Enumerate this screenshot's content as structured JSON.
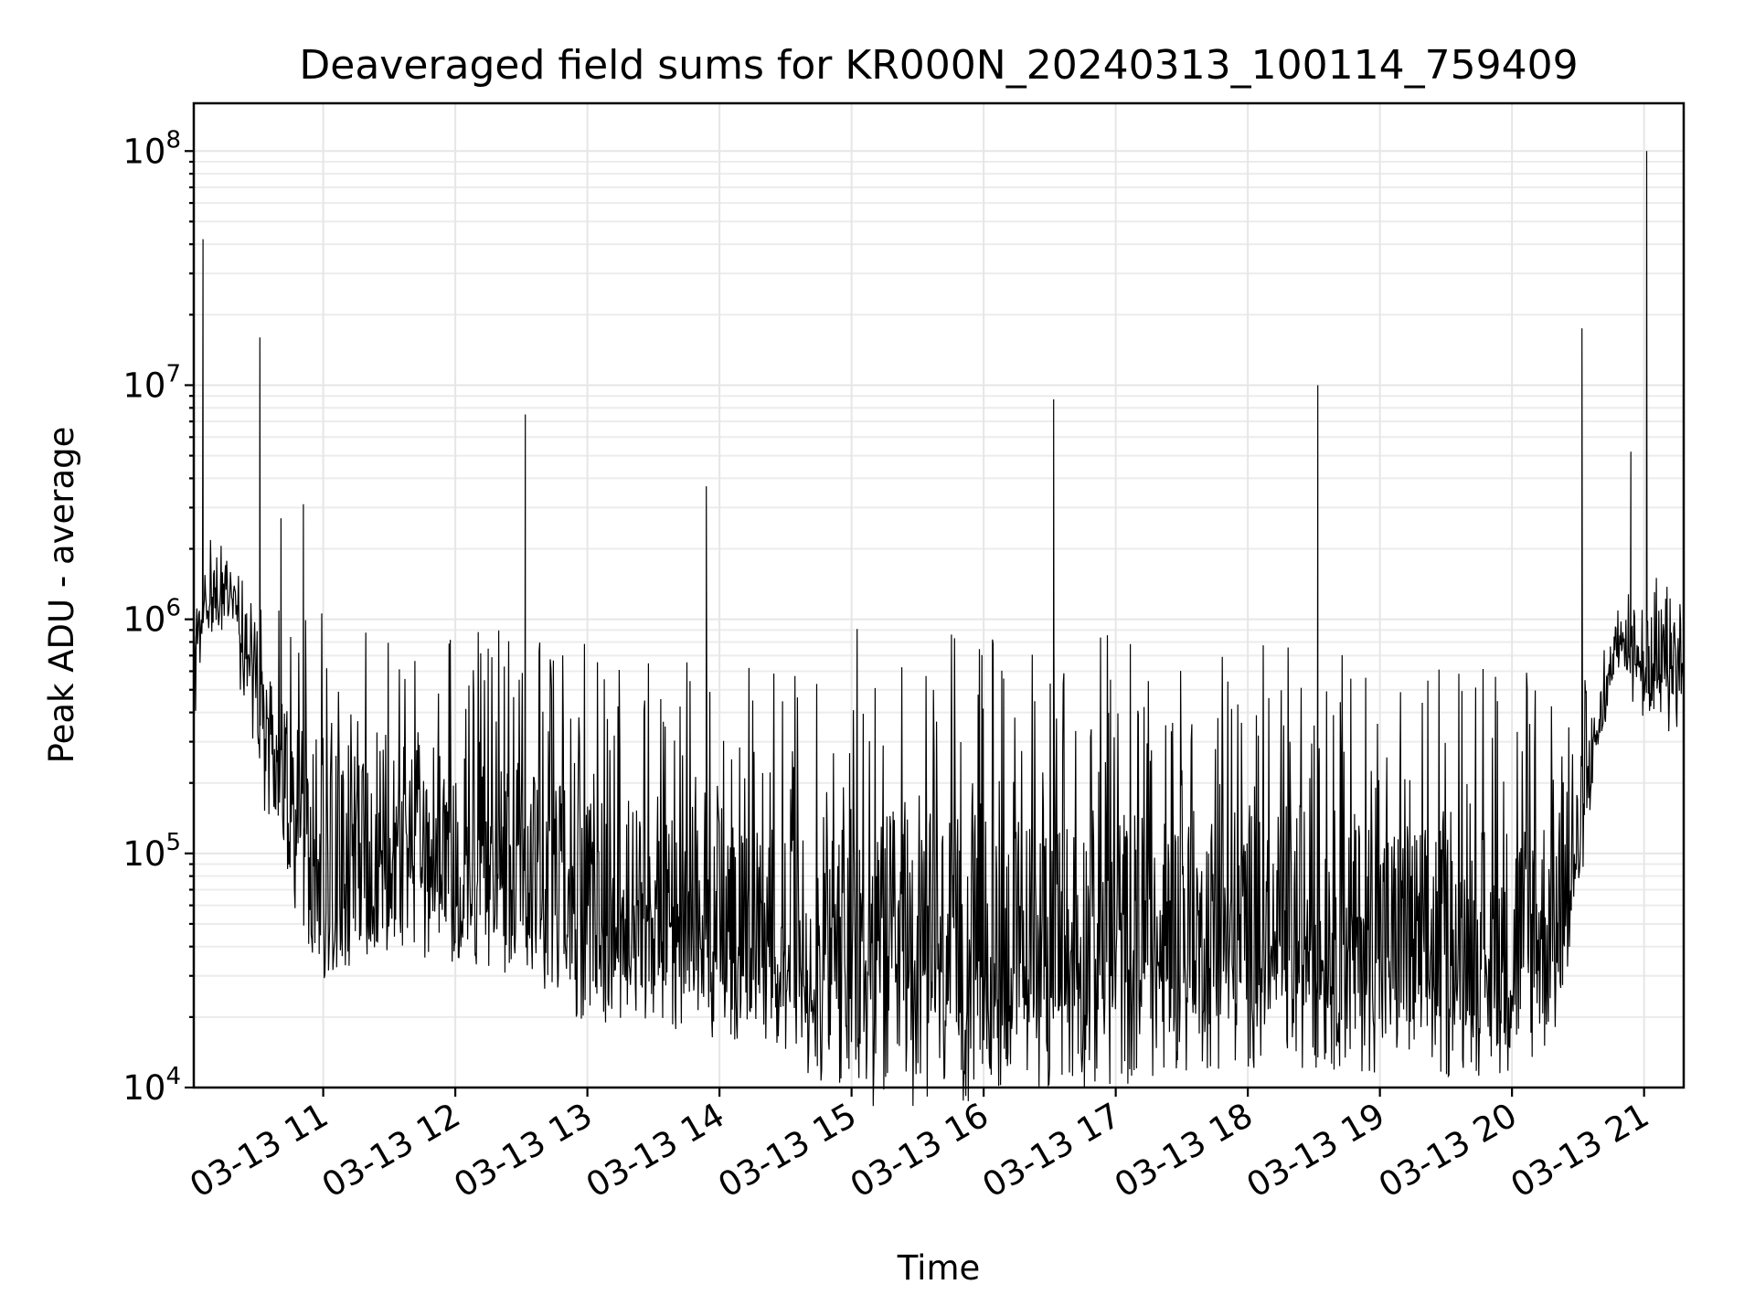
{
  "chart_data": {
    "type": "line",
    "title": "Deaveraged field sums for KR000N_20240313_100114_759409",
    "xlabel": "Time",
    "ylabel": "Peak ADU - average",
    "yscale": "log",
    "ylim": [
      10000,
      160000000
    ],
    "xlim_hours": [
      10.02,
      21.3
    ],
    "grid": true,
    "x_ticks": [
      {
        "hour": 11,
        "label": "03-13 11"
      },
      {
        "hour": 12,
        "label": "03-13 12"
      },
      {
        "hour": 13,
        "label": "03-13 13"
      },
      {
        "hour": 14,
        "label": "03-13 14"
      },
      {
        "hour": 15,
        "label": "03-13 15"
      },
      {
        "hour": 16,
        "label": "03-13 16"
      },
      {
        "hour": 17,
        "label": "03-13 17"
      },
      {
        "hour": 18,
        "label": "03-13 18"
      },
      {
        "hour": 19,
        "label": "03-13 19"
      },
      {
        "hour": 20,
        "label": "03-13 20"
      },
      {
        "hour": 21,
        "label": "03-13 21"
      }
    ],
    "y_ticks": [
      {
        "value": 10000,
        "base": "10",
        "exp": "4"
      },
      {
        "value": 100000,
        "base": "10",
        "exp": "5"
      },
      {
        "value": 1000000,
        "base": "10",
        "exp": "6"
      },
      {
        "value": 10000000,
        "base": "10",
        "exp": "7"
      },
      {
        "value": 100000000,
        "base": "10",
        "exp": "8"
      }
    ],
    "series": [
      {
        "name": "deaveraged field sums",
        "color": "#000000",
        "envelope": {
          "hours": [
            10.02,
            10.1,
            10.3,
            10.5,
            10.8,
            11.0,
            11.5,
            12.0,
            12.5,
            13.0,
            13.5,
            14.0,
            14.3,
            14.5,
            15.0,
            15.5,
            16.0,
            16.5,
            17.0,
            17.5,
            18.0,
            18.5,
            19.0,
            19.5,
            20.0,
            20.4,
            20.6,
            20.8,
            21.0,
            21.3
          ],
          "median": [
            700000,
            1200000,
            1300000,
            450000,
            150000,
            90000,
            110000,
            95000,
            80000,
            60000,
            55000,
            50000,
            50000,
            38000,
            36000,
            35000,
            35000,
            38000,
            40000,
            42000,
            45000,
            45000,
            40000,
            38000,
            40000,
            50000,
            250000,
            850000,
            650000,
            700000
          ],
          "low": [
            300000,
            900000,
            800000,
            200000,
            45000,
            33000,
            38000,
            32000,
            30000,
            27000,
            25000,
            25000,
            20000,
            19000,
            18000,
            17000,
            18000,
            19000,
            19000,
            20000,
            21000,
            21000,
            19000,
            18000,
            19000,
            25000,
            150000,
            600000,
            300000,
            350000
          ],
          "high": [
            1300000,
            2500000,
            2000000,
            1100000,
            1100000,
            1200000,
            1000000,
            900000,
            900000,
            800000,
            650000,
            700000,
            650000,
            550000,
            950000,
            900000,
            850000,
            800000,
            900000,
            750000,
            850000,
            850000,
            650000,
            650000,
            650000,
            750000,
            550000,
            1300000,
            1500000,
            1700000
          ]
        },
        "spikes": [
          {
            "hour": 10.09,
            "value": 42000000
          },
          {
            "hour": 10.52,
            "value": 16000000
          },
          {
            "hour": 10.68,
            "value": 2700000
          },
          {
            "hour": 10.85,
            "value": 3100000
          },
          {
            "hour": 12.53,
            "value": 7500000
          },
          {
            "hour": 13.9,
            "value": 3700000
          },
          {
            "hour": 16.53,
            "value": 8700000
          },
          {
            "hour": 18.53,
            "value": 10000000
          },
          {
            "hour": 20.53,
            "value": 17500000
          },
          {
            "hour": 20.9,
            "value": 5200000
          },
          {
            "hour": 21.02,
            "value": 100000000
          }
        ]
      }
    ]
  }
}
